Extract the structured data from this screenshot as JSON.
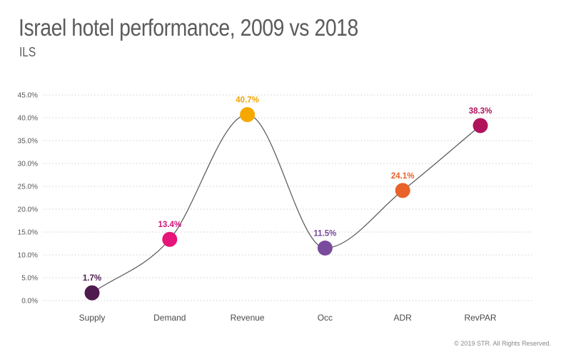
{
  "chart_data": {
    "type": "line",
    "title": "Israel hotel performance, 2009 vs 2018",
    "subtitle": "ILS",
    "categories": [
      "Supply",
      "Demand",
      "Revenue",
      "Occ",
      "ADR",
      "RevPAR"
    ],
    "values": [
      1.7,
      13.4,
      40.7,
      11.5,
      24.1,
      38.3
    ],
    "data_labels": [
      "1.7%",
      "13.4%",
      "40.7%",
      "11.5%",
      "24.1%",
      "38.3%"
    ],
    "point_colors": [
      "#4f1a4e",
      "#e5157a",
      "#f5a800",
      "#7a4b9c",
      "#e8622a",
      "#b0135c"
    ],
    "label_colors": [
      "#4f1a4e",
      "#d0157a",
      "#f0a500",
      "#7a4b9c",
      "#e8622a",
      "#b0135c"
    ],
    "ylim": [
      0,
      45
    ],
    "yticks": [
      0,
      5,
      10,
      15,
      20,
      25,
      30,
      35,
      40,
      45
    ],
    "ytick_labels": [
      "0.0%",
      "5.0%",
      "10.0%",
      "15.0%",
      "20.0%",
      "25.0%",
      "30.0%",
      "35.0%",
      "40.0%",
      "45.0%"
    ],
    "xlabel": "",
    "ylabel": "",
    "grid": true,
    "line_color": "#555555"
  },
  "footer": {
    "copyright": "© 2019 STR. All Rights Reserved."
  }
}
